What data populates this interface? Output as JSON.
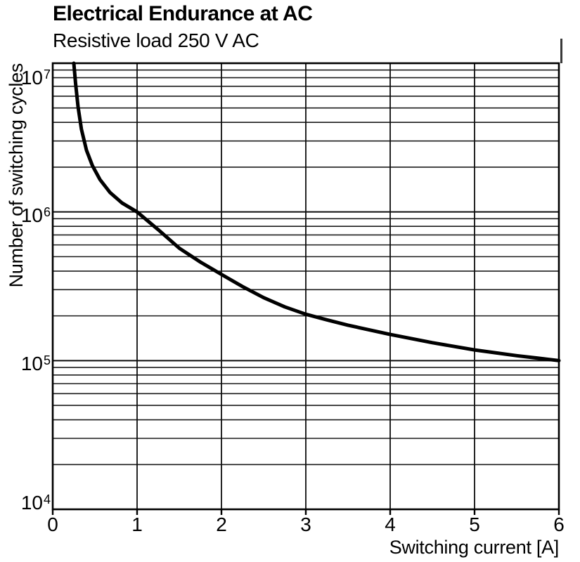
{
  "header": {
    "title": "Electrical Endurance at AC",
    "subtitle": "Resistive load 250 V AC"
  },
  "chart_data": {
    "type": "line",
    "title": "Electrical Endurance at AC",
    "subtitle": "Resistive load 250 V AC",
    "xlabel": "Switching current [A]",
    "ylabel": "Number of switching cycles",
    "x_scale": "linear",
    "y_scale": "log",
    "xlim": [
      0,
      6
    ],
    "ylim": [
      10000,
      10000000
    ],
    "grid": "full frame, vertical lines at each ampere, horizontal log minor lines 2-9 per decade",
    "legend": "none",
    "x_ticks": [
      0,
      1,
      2,
      3,
      4,
      5,
      6
    ],
    "y_ticks": [
      {
        "label": "10^7",
        "value": 10000000
      },
      {
        "label": "10^6",
        "value": 1000000
      },
      {
        "label": "10^5",
        "value": 100000
      },
      {
        "label": "10^4",
        "value": 10000
      }
    ],
    "series": [
      {
        "name": "Resistive load 250 V AC",
        "color": "#000000",
        "points": [
          [
            0.25,
            10000000
          ],
          [
            0.27,
            7400000
          ],
          [
            0.3,
            5100000
          ],
          [
            0.34,
            3600000
          ],
          [
            0.4,
            2600000
          ],
          [
            0.47,
            2050000
          ],
          [
            0.56,
            1650000
          ],
          [
            0.68,
            1350000
          ],
          [
            0.82,
            1150000
          ],
          [
            1.0,
            1000000
          ],
          [
            1.25,
            760000
          ],
          [
            1.5,
            570000
          ],
          [
            1.75,
            460000
          ],
          [
            2.0,
            380000
          ],
          [
            2.25,
            315000
          ],
          [
            2.5,
            265000
          ],
          [
            2.75,
            230000
          ],
          [
            3.0,
            205000
          ],
          [
            3.25,
            188000
          ],
          [
            3.5,
            173000
          ],
          [
            4.0,
            150000
          ],
          [
            4.5,
            132000
          ],
          [
            5.0,
            118000
          ],
          [
            5.5,
            108000
          ],
          [
            6.0,
            100000
          ]
        ]
      }
    ],
    "colors": {
      "curve": "#000000",
      "grid_minor": "#1c1c1c",
      "grid_major": "#0d0d0d",
      "frame": "#000000",
      "background": "#ffffff",
      "text": "#000000"
    }
  }
}
